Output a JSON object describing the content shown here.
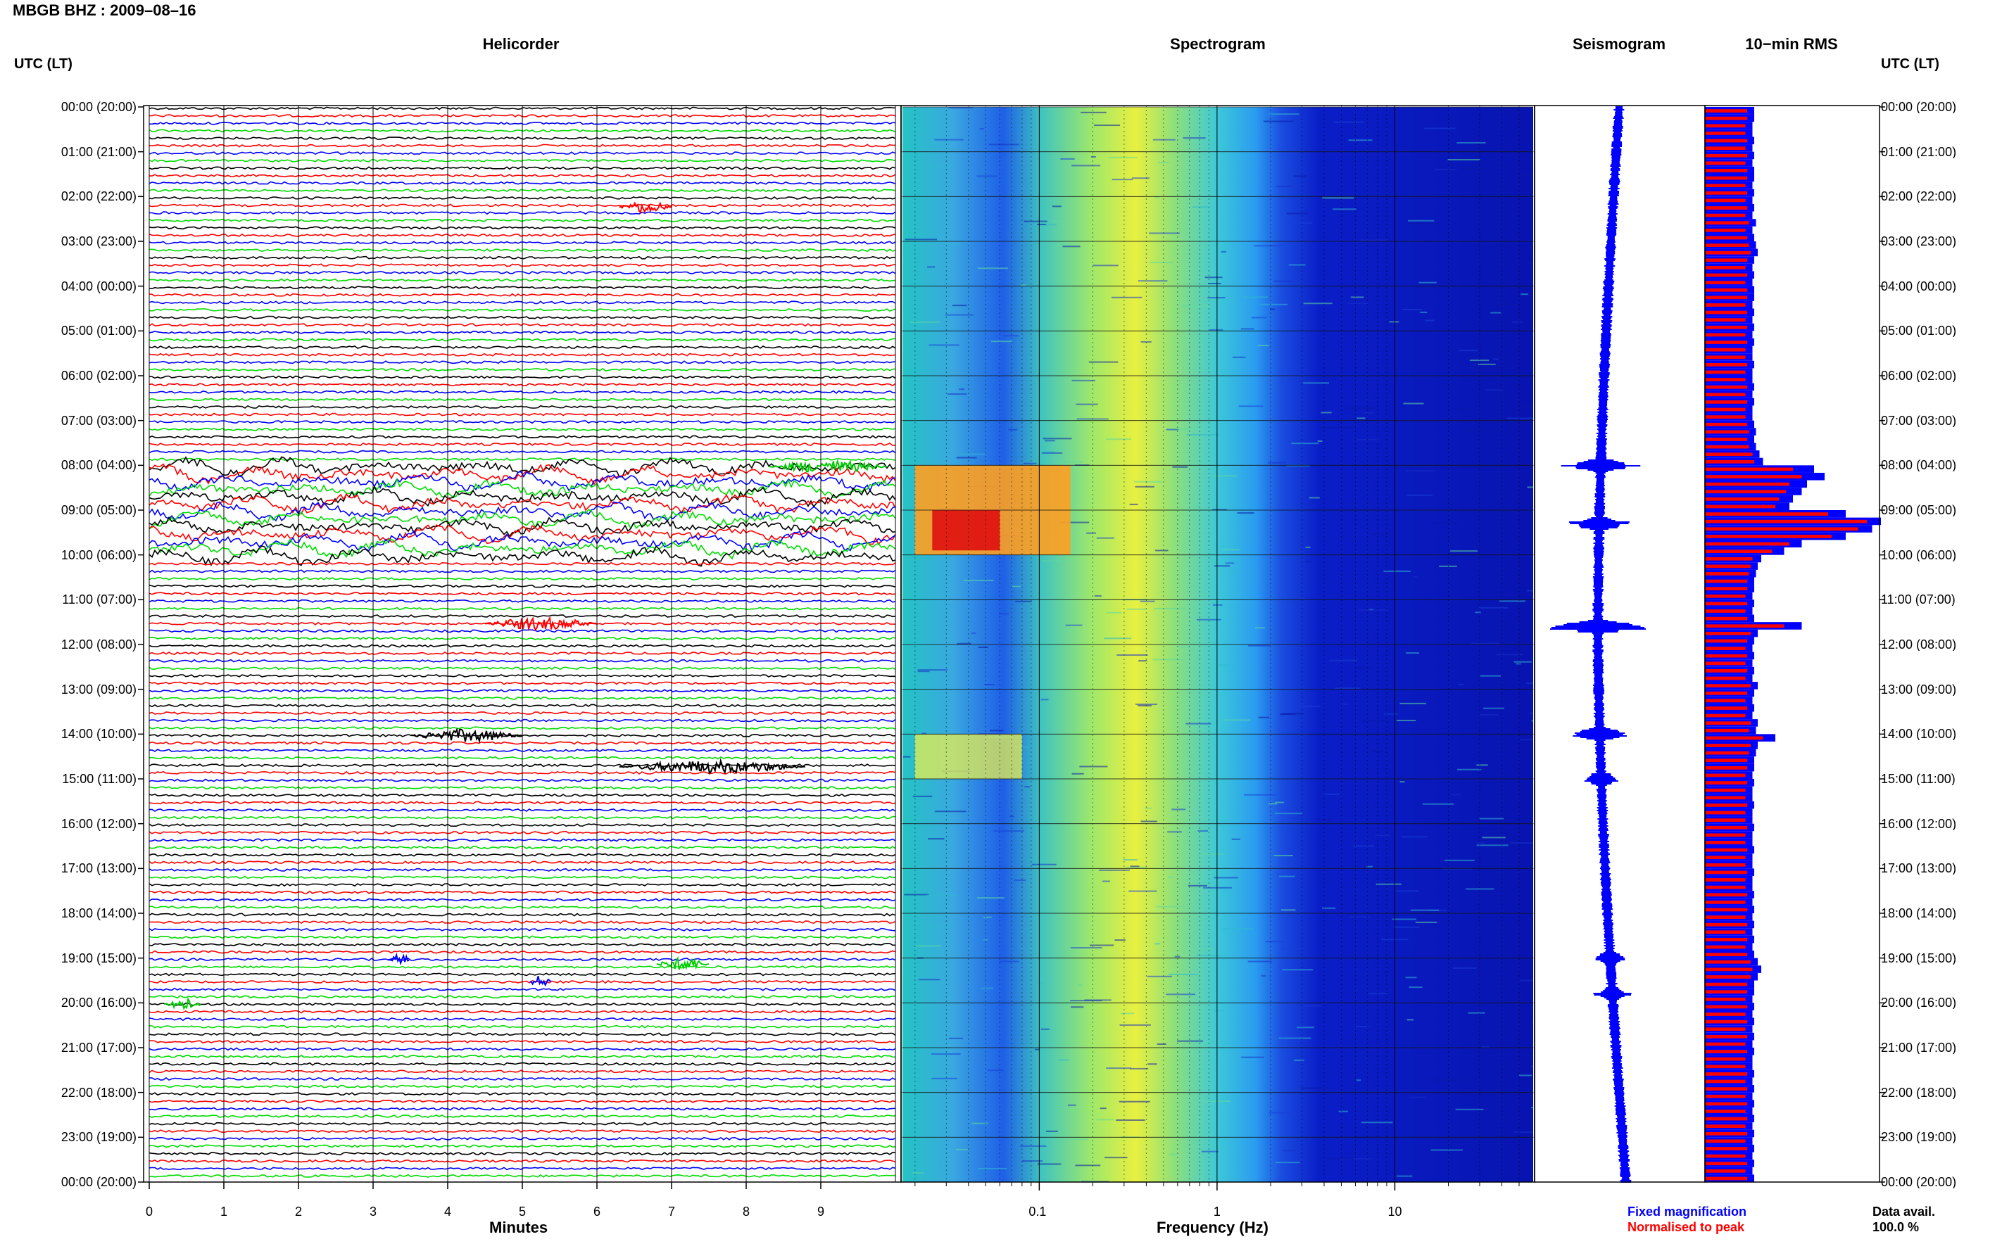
{
  "title": "MBGB BHZ : 2009–08–16",
  "panels": {
    "helicorder": "Helicorder",
    "spectrogram": "Spectrogram",
    "seismogram": "Seismogram",
    "rms": "10−min RMS"
  },
  "utc_header": "UTC (LT)",
  "time_labels": [
    "00:00 (20:00)",
    "01:00 (21:00)",
    "02:00 (22:00)",
    "03:00 (23:00)",
    "04:00 (00:00)",
    "05:00 (01:00)",
    "06:00 (02:00)",
    "07:00 (03:00)",
    "08:00 (04:00)",
    "09:00 (05:00)",
    "10:00 (06:00)",
    "11:00 (07:00)",
    "12:00 (08:00)",
    "13:00 (09:00)",
    "14:00 (10:00)",
    "15:00 (11:00)",
    "16:00 (12:00)",
    "17:00 (13:00)",
    "18:00 (14:00)",
    "19:00 (15:00)",
    "20:00 (16:00)",
    "21:00 (17:00)",
    "22:00 (18:00)",
    "23:00 (19:00)",
    "00:00 (20:00)"
  ],
  "x_axes": {
    "minutes_ticks": [
      "0",
      "1",
      "2",
      "3",
      "4",
      "5",
      "6",
      "7",
      "8",
      "9"
    ],
    "minutes_label": "Minutes",
    "frequency_ticks": [
      "0.1",
      "1",
      "10"
    ],
    "frequency_label": "Frequency (Hz)"
  },
  "legend": {
    "fixed": "Fixed magnification",
    "normalised": "Normalised to peak",
    "fixed_color": "#0000ff",
    "normalised_color": "#ff0000",
    "data_avail_label": "Data avail.",
    "data_avail_value": "100.0 %"
  },
  "colors": {
    "trace_cycle": [
      "#000000",
      "#ff0000",
      "#0000ff",
      "#00dd00"
    ]
  },
  "chart_data": [
    {
      "type": "line",
      "title": "Helicorder",
      "xlabel": "Minutes",
      "xlim": [
        0,
        10
      ],
      "ylim_hours_utc": [
        0,
        24
      ],
      "rows_per_hour": 6,
      "events": [
        {
          "hour": 2.2,
          "minute_start": 6.3,
          "minute_end": 7.0,
          "color": "red"
        },
        {
          "hour": 8.0,
          "minute_start": 8.3,
          "minute_end": 9.9,
          "color": "green"
        },
        {
          "hour": 8.0,
          "minute_start": 0.0,
          "minute_end": 10.0,
          "color": "black",
          "note_type": "microseism"
        },
        {
          "hour": 9.0,
          "minute_start": 0.0,
          "minute_end": 10.0,
          "color": "red",
          "note_type": "microseism"
        },
        {
          "hour": 11.5,
          "minute_start": 4.5,
          "minute_end": 6.0,
          "color": "red"
        },
        {
          "hour": 14.0,
          "minute_start": 3.5,
          "minute_end": 5.0,
          "color": "black"
        },
        {
          "hour": 14.7,
          "minute_start": 6.3,
          "minute_end": 8.8,
          "color": "black"
        },
        {
          "hour": 19.0,
          "minute_start": 3.2,
          "minute_end": 3.5,
          "color": "blue"
        },
        {
          "hour": 19.1,
          "minute_start": 6.8,
          "minute_end": 7.5,
          "color": "green"
        },
        {
          "hour": 19.5,
          "minute_start": 5.1,
          "minute_end": 5.4,
          "color": "blue"
        },
        {
          "hour": 20.0,
          "minute_start": 0.2,
          "minute_end": 0.7,
          "color": "green"
        }
      ]
    },
    {
      "type": "heatmap",
      "title": "Spectrogram",
      "xlabel": "Frequency (Hz)",
      "x_scale": "log",
      "xlim": [
        0.017,
        60
      ],
      "ylim_hours_utc": [
        0,
        24
      ],
      "x_ticks": [
        0.1,
        1,
        10
      ],
      "colormap": "jet",
      "features": [
        {
          "hour_start": 8.0,
          "hour_end": 10.0,
          "freq_low": 0.02,
          "freq_high": 0.15,
          "level": "high"
        },
        {
          "hour_start": 14.0,
          "hour_end": 15.0,
          "freq_low": 0.02,
          "freq_high": 0.08,
          "level": "medium"
        },
        {
          "hour_start": 0,
          "hour_end": 24,
          "freq_low": 0.2,
          "freq_high": 0.6,
          "level": "medium"
        }
      ]
    },
    {
      "type": "line",
      "title": "Seismogram",
      "ylim_hours_utc": [
        0,
        24
      ],
      "bursts_hour": [
        8.0,
        9.3,
        11.6,
        14.0,
        15.0,
        19.0,
        19.8
      ],
      "burst_amplitude": [
        0.9,
        0.8,
        1.6,
        0.7,
        0.4,
        0.3,
        0.4
      ]
    },
    {
      "type": "bar",
      "title": "10−min RMS",
      "orientation": "horizontal",
      "ylim_hours_utc": [
        0,
        24
      ],
      "series": [
        {
          "name": "Fixed magnification",
          "values": [
            0.28,
            0.28,
            0.27,
            0.27,
            0.28,
            0.27,
            0.28,
            0.27,
            0.28,
            0.28,
            0.27,
            0.28,
            0.27,
            0.28,
            0.27,
            0.29,
            0.27,
            0.28,
            0.29,
            0.3,
            0.28,
            0.27,
            0.28,
            0.27,
            0.28,
            0.28,
            0.27,
            0.28,
            0.27,
            0.28,
            0.27,
            0.28,
            0.27,
            0.27,
            0.28,
            0.27,
            0.27,
            0.28,
            0.27,
            0.28,
            0.27,
            0.27,
            0.28,
            0.29,
            0.28,
            0.29,
            0.31,
            0.33,
            0.62,
            0.68,
            0.58,
            0.55,
            0.5,
            0.48,
            0.8,
            1.0,
            0.95,
            0.8,
            0.55,
            0.45,
            0.32,
            0.3,
            0.29,
            0.28,
            0.28,
            0.27,
            0.28,
            0.27,
            0.28,
            0.55,
            0.3,
            0.28,
            0.27,
            0.28,
            0.27,
            0.28,
            0.27,
            0.3,
            0.28,
            0.27,
            0.28,
            0.27,
            0.3,
            0.29,
            0.4,
            0.3,
            0.29,
            0.28,
            0.28,
            0.27,
            0.28,
            0.27,
            0.27,
            0.28,
            0.27,
            0.27,
            0.28,
            0.27,
            0.27,
            0.28,
            0.27,
            0.27,
            0.28,
            0.27,
            0.27,
            0.28,
            0.27,
            0.28,
            0.27,
            0.28,
            0.27,
            0.28,
            0.27,
            0.28,
            0.3,
            0.32,
            0.3,
            0.28,
            0.28,
            0.27,
            0.28,
            0.27,
            0.28,
            0.27,
            0.28,
            0.27,
            0.28,
            0.27,
            0.27,
            0.28,
            0.27,
            0.28,
            0.27,
            0.28,
            0.27,
            0.28,
            0.27,
            0.28,
            0.27,
            0.28,
            0.27,
            0.28,
            0.27,
            0.28
          ]
        },
        {
          "name": "Normalised to peak",
          "values": [
            0.24,
            0.24,
            0.23,
            0.23,
            0.24,
            0.23,
            0.24,
            0.23,
            0.24,
            0.24,
            0.23,
            0.24,
            0.23,
            0.24,
            0.23,
            0.25,
            0.23,
            0.24,
            0.25,
            0.26,
            0.24,
            0.23,
            0.24,
            0.23,
            0.24,
            0.24,
            0.23,
            0.24,
            0.23,
            0.24,
            0.23,
            0.24,
            0.23,
            0.23,
            0.24,
            0.23,
            0.23,
            0.24,
            0.23,
            0.24,
            0.23,
            0.23,
            0.24,
            0.25,
            0.24,
            0.25,
            0.27,
            0.28,
            0.5,
            0.55,
            0.48,
            0.46,
            0.42,
            0.4,
            0.7,
            0.92,
            0.87,
            0.72,
            0.48,
            0.38,
            0.27,
            0.26,
            0.25,
            0.24,
            0.24,
            0.23,
            0.24,
            0.23,
            0.24,
            0.45,
            0.26,
            0.24,
            0.23,
            0.24,
            0.23,
            0.24,
            0.23,
            0.26,
            0.24,
            0.23,
            0.24,
            0.23,
            0.26,
            0.25,
            0.33,
            0.26,
            0.25,
            0.24,
            0.24,
            0.23,
            0.24,
            0.23,
            0.23,
            0.24,
            0.23,
            0.23,
            0.24,
            0.23,
            0.23,
            0.24,
            0.23,
            0.23,
            0.24,
            0.23,
            0.23,
            0.24,
            0.23,
            0.24,
            0.23,
            0.24,
            0.23,
            0.24,
            0.23,
            0.24,
            0.26,
            0.27,
            0.26,
            0.24,
            0.24,
            0.23,
            0.24,
            0.23,
            0.24,
            0.23,
            0.24,
            0.23,
            0.24,
            0.23,
            0.23,
            0.24,
            0.23,
            0.24,
            0.23,
            0.24,
            0.23,
            0.24,
            0.23,
            0.24,
            0.23,
            0.24,
            0.23,
            0.24,
            0.23,
            0.24
          ]
        }
      ]
    }
  ]
}
